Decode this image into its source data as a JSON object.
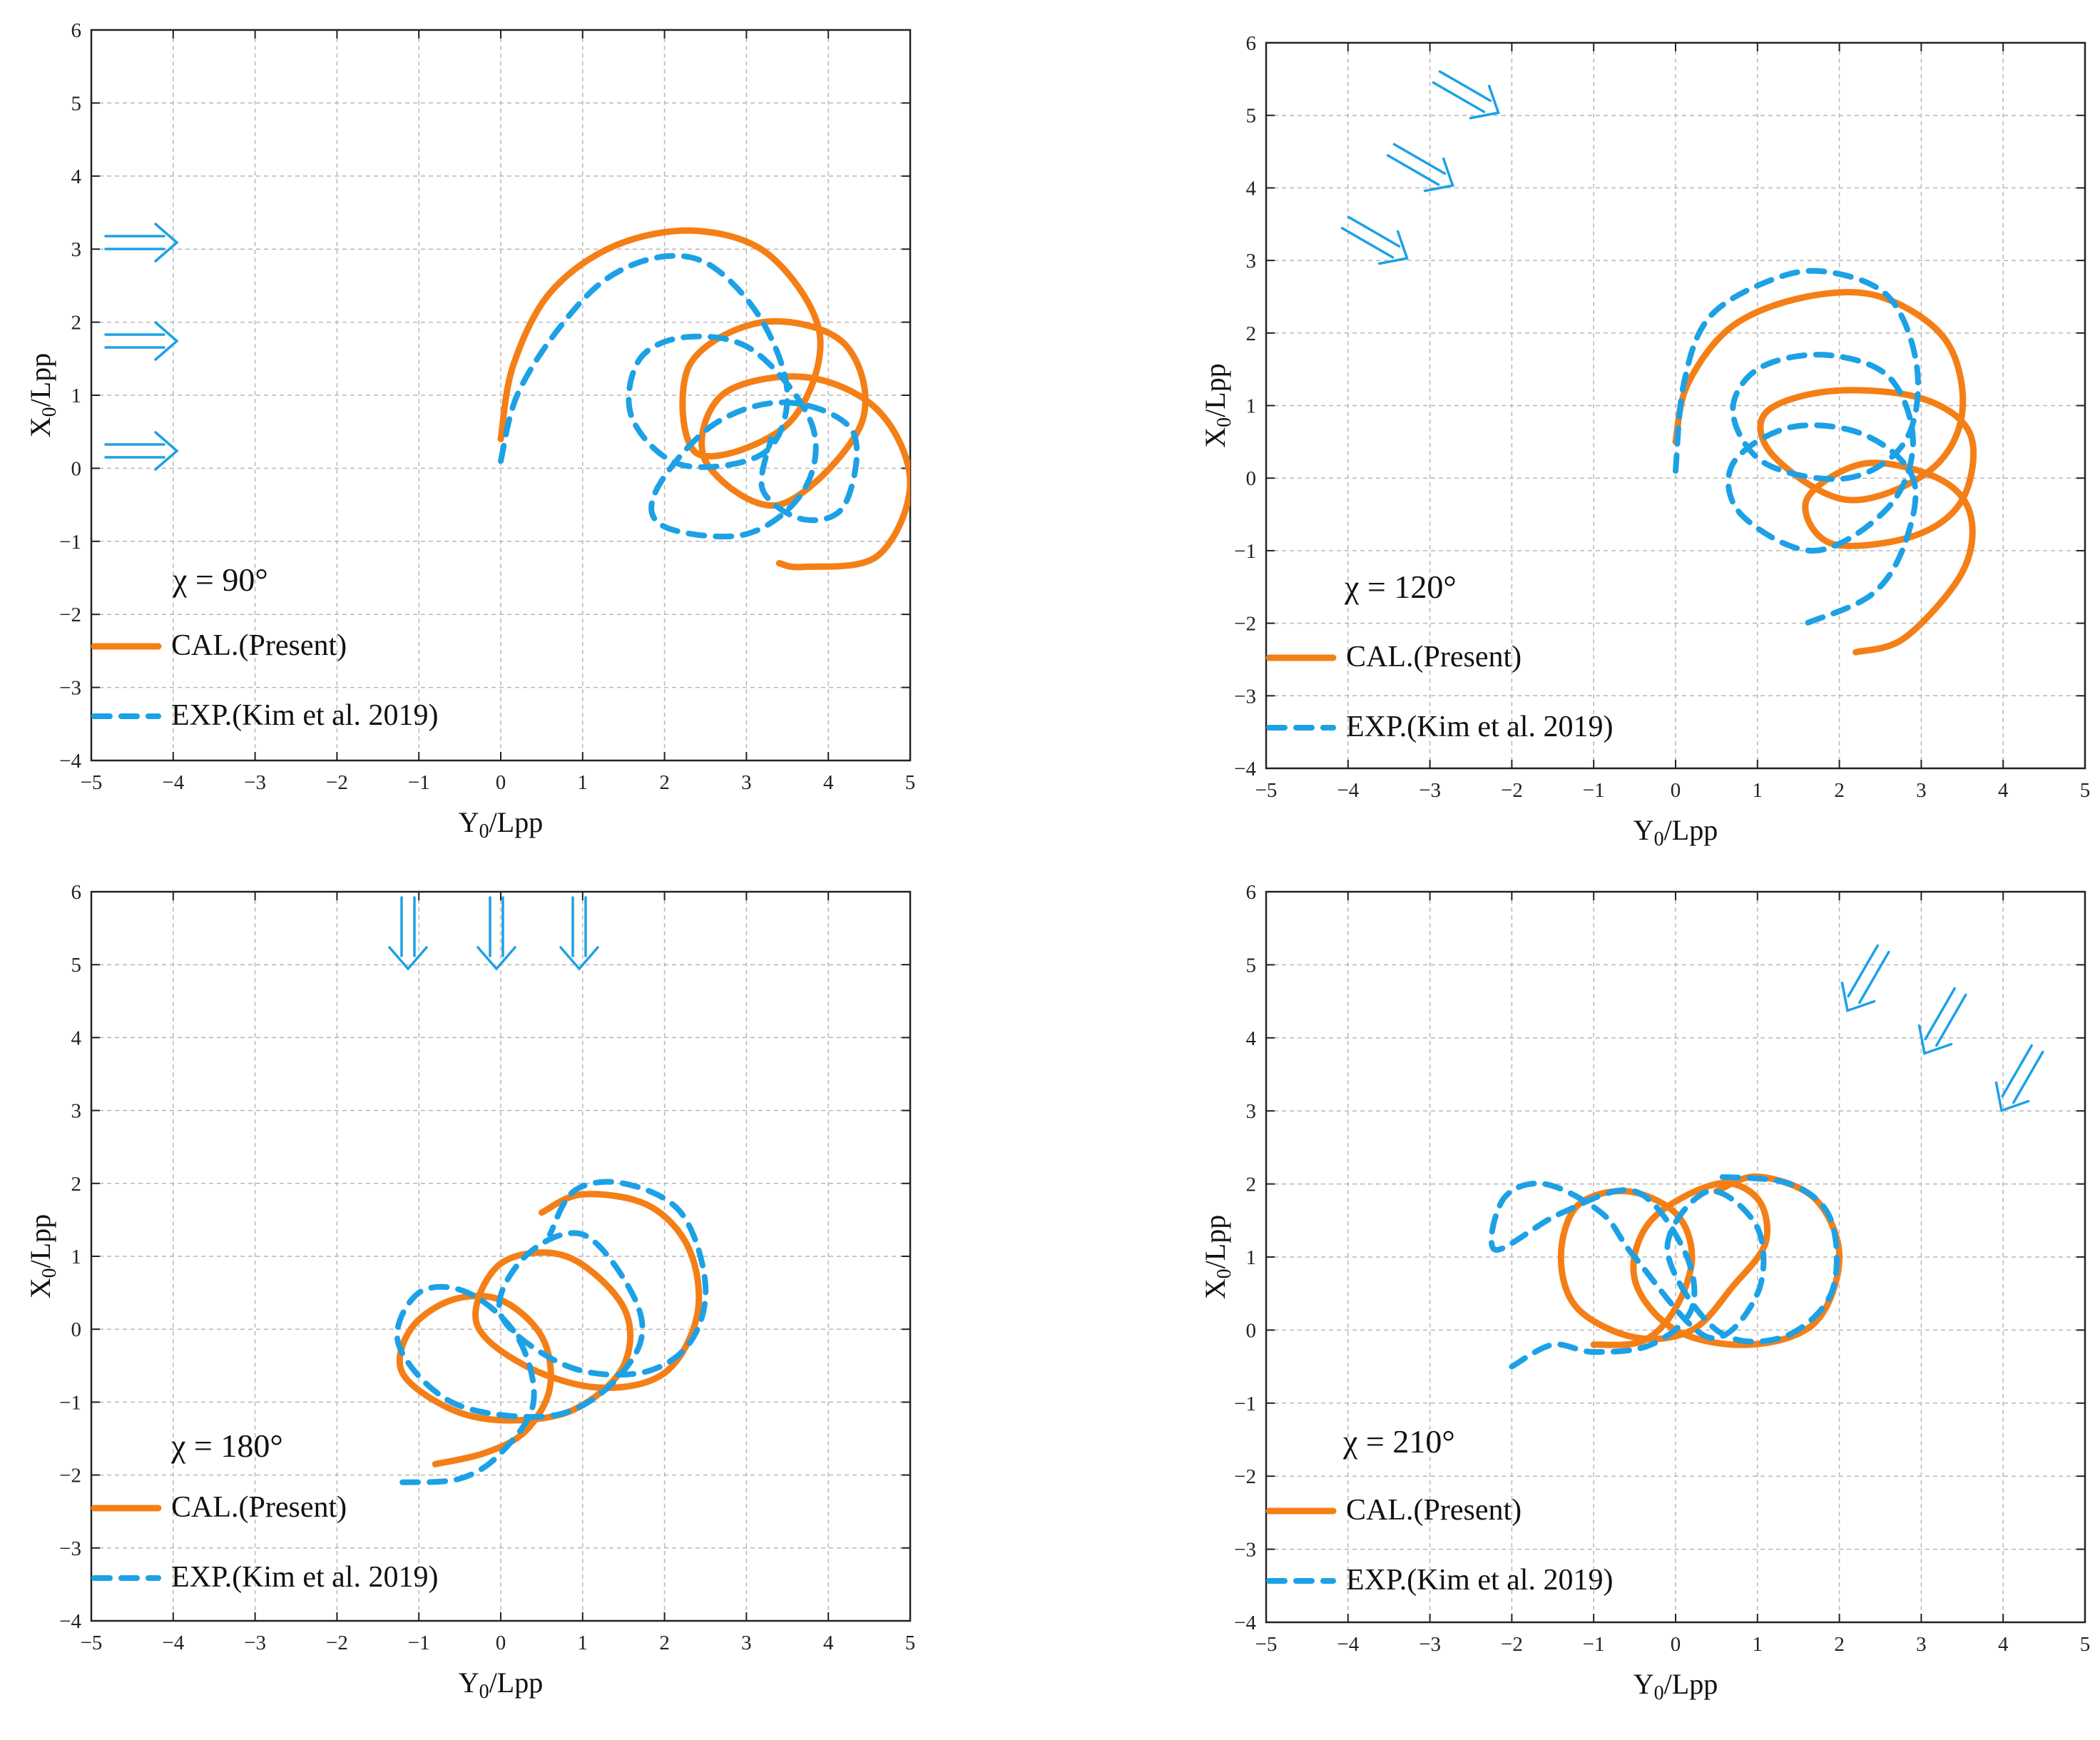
{
  "colors": {
    "cal": "#f47f17",
    "exp": "#1da1e6",
    "arrow": "#1da1e6",
    "grid": "#b7b7b7"
  },
  "chart_data": [
    {
      "type": "line",
      "annotation": "χ = 90°",
      "xlabel": "Y0/Lpp",
      "ylabel": "X0/Lpp",
      "xlim": [
        -5,
        5
      ],
      "ylim": [
        -4,
        6
      ],
      "xticks": [
        -5,
        -4,
        -3,
        -2,
        -1,
        0,
        1,
        2,
        3,
        4,
        5
      ],
      "yticks": [
        -4,
        -3,
        -2,
        -1,
        0,
        1,
        2,
        3,
        4,
        5,
        6
      ],
      "grid": true,
      "wave_direction_deg": 90,
      "series": [
        {
          "name": "CAL.(Present)",
          "style": "solid",
          "x": [
            0,
            0.15,
            0.6,
            1.4,
            2.4,
            3.3,
            3.9,
            3.5,
            2.4,
            2.3,
            3.2,
            4.2,
            4.4,
            3.4,
            2.5,
            2.7,
            3.7,
            4.6,
            5.0,
            4.6,
            3.7,
            3.4
          ],
          "y": [
            0.4,
            1.4,
            2.4,
            3.05,
            3.25,
            2.9,
            1.8,
            0.6,
            0.2,
            1.4,
            2.0,
            1.7,
            0.6,
            -0.5,
            0.1,
            1.0,
            1.25,
            0.8,
            -0.2,
            -1.2,
            -1.35,
            -1.3
          ]
        },
        {
          "name": "EXP.(Kim et al. 2019)",
          "style": "dashed",
          "x": [
            0,
            0.2,
            0.7,
            1.3,
            2.0,
            2.6,
            3.2,
            3.5,
            3.2,
            2.2,
            1.6,
            1.7,
            2.3,
            3.1,
            3.8,
            3.7,
            3.0,
            2.0,
            1.9,
            2.6,
            3.5,
            4.3,
            4.2,
            3.7,
            3.2,
            3.3
          ],
          "y": [
            0.1,
            1.0,
            1.9,
            2.6,
            2.9,
            2.75,
            2.0,
            1.0,
            0.2,
            0.05,
            0.7,
            1.5,
            1.8,
            1.6,
            0.6,
            -0.3,
            -0.9,
            -0.8,
            -0.3,
            0.6,
            0.9,
            0.5,
            -0.5,
            -0.7,
            -0.3,
            0.4
          ]
        }
      ]
    },
    {
      "type": "line",
      "annotation": "χ = 120°",
      "xlabel": "Y0/Lpp",
      "ylabel": "X0/Lpp",
      "xlim": [
        -5,
        5
      ],
      "ylim": [
        -4,
        6
      ],
      "xticks": [
        -5,
        -4,
        -3,
        -2,
        -1,
        0,
        1,
        2,
        3,
        4,
        5
      ],
      "yticks": [
        -4,
        -3,
        -2,
        -1,
        0,
        1,
        2,
        3,
        4,
        5,
        6
      ],
      "grid": true,
      "wave_direction_deg": 120,
      "series": [
        {
          "name": "CAL.(Present)",
          "style": "solid",
          "x": [
            0,
            0.15,
            0.7,
            1.6,
            2.5,
            3.3,
            3.5,
            3.1,
            2.1,
            1.2,
            1.1,
            1.9,
            3.0,
            3.6,
            3.5,
            2.9,
            1.9,
            1.6,
            2.3,
            3.2,
            3.6,
            3.5,
            2.8,
            2.2
          ],
          "y": [
            0.5,
            1.3,
            2.1,
            2.5,
            2.5,
            1.9,
            0.9,
            0.1,
            -0.3,
            0.3,
            0.9,
            1.2,
            1.1,
            0.6,
            -0.3,
            -0.8,
            -0.9,
            -0.3,
            0.2,
            0.0,
            -0.5,
            -1.3,
            -2.2,
            -2.4
          ]
        },
        {
          "name": "EXP.(Kim et al. 2019)",
          "style": "dashed",
          "x": [
            0,
            0.1,
            0.4,
            1.1,
            1.8,
            2.6,
            2.95,
            2.8,
            2.1,
            1.1,
            0.7,
            1.0,
            1.8,
            2.6,
            2.9,
            2.6,
            1.7,
            0.8,
            0.7,
            1.4,
            2.3,
            2.9,
            2.8,
            2.4,
            1.6
          ],
          "y": [
            0.1,
            1.3,
            2.2,
            2.7,
            2.85,
            2.5,
            1.5,
            0.5,
            0.0,
            0.2,
            0.9,
            1.5,
            1.7,
            1.4,
            0.5,
            -0.4,
            -1.0,
            -0.5,
            0.2,
            0.7,
            0.6,
            0.0,
            -0.9,
            -1.6,
            -2.0
          ]
        }
      ]
    },
    {
      "type": "line",
      "annotation": "χ = 180°",
      "xlabel": "Y0/Lpp",
      "ylabel": "X0/Lpp",
      "xlim": [
        -5,
        5
      ],
      "ylim": [
        -4,
        6
      ],
      "xticks": [
        -5,
        -4,
        -3,
        -2,
        -1,
        0,
        1,
        2,
        3,
        4,
        5
      ],
      "yticks": [
        -4,
        -3,
        -2,
        -1,
        0,
        1,
        2,
        3,
        4,
        5,
        6
      ],
      "grid": true,
      "wave_direction_deg": 180,
      "series": [
        {
          "name": "CAL.(Present)",
          "style": "solid",
          "x": [
            -0.8,
            -0.2,
            0.3,
            0.6,
            0.5,
            0.0,
            -0.6,
            -1.1,
            -1.2,
            -0.6,
            0.1,
            0.9,
            1.5,
            1.5,
            0.8,
            0.0,
            -0.3,
            0.3,
            1.2,
            2.0,
            2.4,
            2.3,
            1.8,
            1.0,
            0.5
          ],
          "y": [
            -1.85,
            -1.7,
            -1.4,
            -0.8,
            -0.1,
            0.4,
            0.4,
            0.0,
            -0.6,
            -1.1,
            -1.25,
            -1.1,
            -0.5,
            0.3,
            1.0,
            0.9,
            0.1,
            -0.5,
            -0.8,
            -0.6,
            0.2,
            1.1,
            1.7,
            1.85,
            1.6
          ]
        },
        {
          "name": "EXP.(Kim et al. 2019)",
          "style": "dashed",
          "x": [
            -1.2,
            -0.5,
            0.0,
            0.4,
            0.2,
            -0.4,
            -1.0,
            -1.25,
            -0.6,
            0.5,
            1.2,
            1.7,
            1.6,
            1.0,
            0.3,
            0.0,
            0.8,
            1.7,
            2.3,
            2.5,
            2.2,
            1.5,
            0.9,
            0.6
          ],
          "y": [
            -2.1,
            -2.05,
            -1.7,
            -1.0,
            -0.1,
            0.5,
            0.5,
            -0.2,
            -1.0,
            -1.2,
            -0.9,
            -0.2,
            0.5,
            1.3,
            1.0,
            0.2,
            -0.5,
            -0.6,
            -0.2,
            0.6,
            1.6,
            2.0,
            1.9,
            1.3
          ]
        }
      ]
    },
    {
      "type": "line",
      "annotation": "χ = 210°",
      "xlabel": "Y0/Lpp",
      "ylabel": "X0/Lpp",
      "xlim": [
        -5,
        5
      ],
      "ylim": [
        -4,
        6
      ],
      "xticks": [
        -5,
        -4,
        -3,
        -2,
        -1,
        0,
        1,
        2,
        3,
        4,
        5
      ],
      "yticks": [
        -4,
        -3,
        -2,
        -1,
        0,
        1,
        2,
        3,
        4,
        5,
        6
      ],
      "grid": true,
      "wave_direction_deg": 210,
      "series": [
        {
          "name": "CAL.(Present)",
          "style": "solid",
          "x": [
            -1.0,
            -0.4,
            0.0,
            0.2,
            0.0,
            -0.6,
            -1.2,
            -1.4,
            -1.2,
            -0.5,
            0.2,
            0.7,
            1.1,
            1.0,
            0.5,
            -0.3,
            -0.5,
            0.0,
            0.9,
            1.7,
            2.0,
            1.7,
            1.0,
            0.5
          ],
          "y": [
            -0.2,
            -0.15,
            0.3,
            1.0,
            1.6,
            1.9,
            1.7,
            1.0,
            0.3,
            -0.1,
            0.0,
            0.6,
            1.2,
            1.8,
            2.0,
            1.5,
            0.7,
            0.0,
            -0.2,
            0.1,
            1.0,
            1.8,
            2.1,
            1.9
          ]
        },
        {
          "name": "EXP.(Kim et al. 2019)",
          "style": "dashed",
          "x": [
            -2.0,
            -1.5,
            -1.0,
            -0.3,
            0.2,
            0.1,
            -0.5,
            -1.4,
            -2.2,
            -2.1,
            -1.6,
            -0.9,
            -0.5,
            0.4,
            1.0,
            1.0,
            0.4,
            -0.1,
            0.5,
            1.3,
            1.9,
            1.9,
            1.4,
            0.5
          ],
          "y": [
            -0.5,
            -0.2,
            -0.3,
            -0.2,
            0.3,
            1.1,
            1.9,
            1.6,
            1.1,
            1.8,
            2.0,
            1.6,
            1.0,
            -0.1,
            0.5,
            1.4,
            1.9,
            1.1,
            0.0,
            -0.1,
            0.5,
            1.5,
            2.0,
            2.1
          ]
        }
      ]
    }
  ],
  "legend": {
    "cal_label": "CAL.(Present)",
    "exp_label": "EXP.(Kim et al. 2019)",
    "placement": "lower-left"
  }
}
